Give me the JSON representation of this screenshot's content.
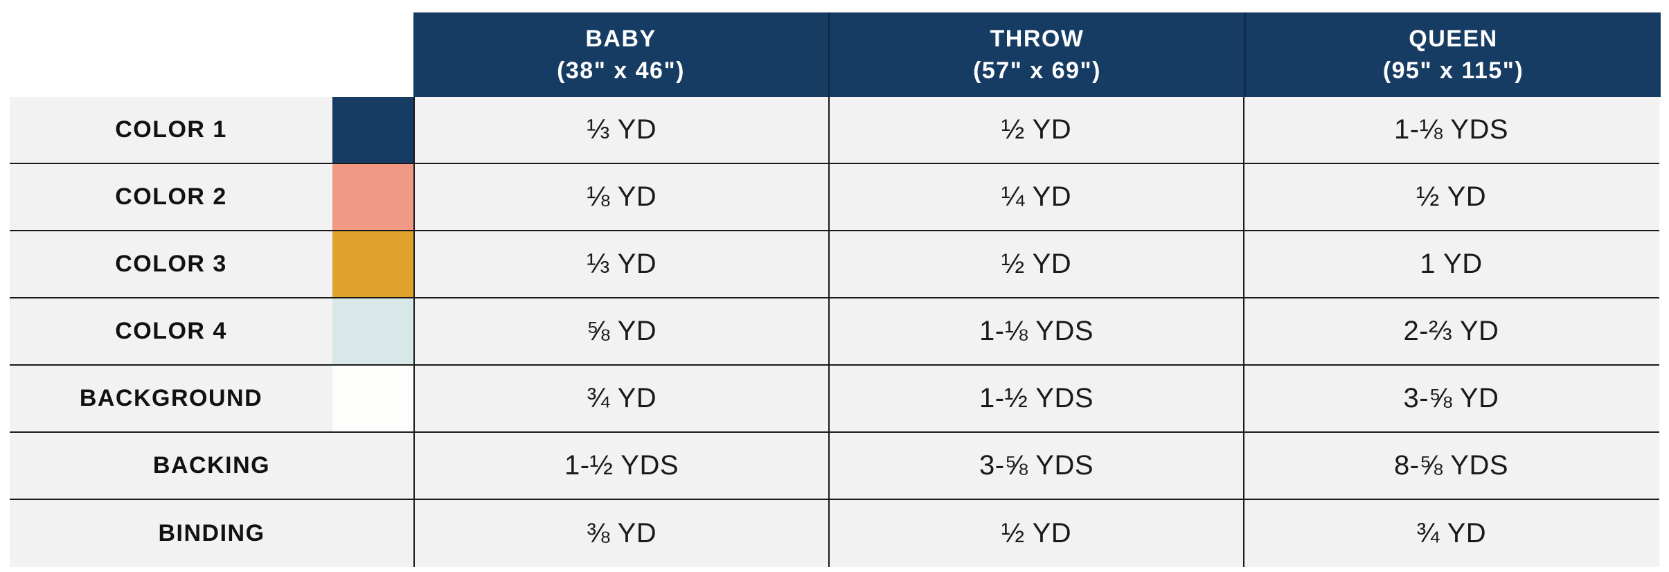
{
  "header": {
    "columns": [
      {
        "name": "BABY",
        "size": "(38\" x 46\")"
      },
      {
        "name": "THROW",
        "size": "(57\" x 69\")"
      },
      {
        "name": "QUEEN",
        "size": "(95\" x 115\")"
      }
    ]
  },
  "colors": {
    "header_bg": "#173c64",
    "color_1": "#173c64",
    "color_2": "#f09a86",
    "color_3": "#e0a22d",
    "color_4": "#d8e8e8",
    "background": "#fdfdfb"
  },
  "rows": [
    {
      "label": "COLOR 1",
      "baby": "⅓ YD",
      "throw": "½ YD",
      "queen": "1-⅛ YDS"
    },
    {
      "label": "COLOR 2",
      "baby": "⅛ YD",
      "throw": "¼ YD",
      "queen": "½ YD"
    },
    {
      "label": "COLOR 3",
      "baby": "⅓ YD",
      "throw": "½ YD",
      "queen": "1 YD"
    },
    {
      "label": "COLOR 4",
      "baby": "⅝ YD",
      "throw": "1-⅛ YDS",
      "queen": "2-⅔ YD"
    },
    {
      "label": "BACKGROUND",
      "baby": "¾ YD",
      "throw": "1-½ YDS",
      "queen": "3-⅝ YD"
    },
    {
      "label": "BACKING",
      "baby": "1-½ YDS",
      "throw": "3-⅝ YDS",
      "queen": "8-⅝ YDS"
    },
    {
      "label": "BINDING",
      "baby": "⅜ YD",
      "throw": "½ YD",
      "queen": "¾ YD"
    }
  ]
}
